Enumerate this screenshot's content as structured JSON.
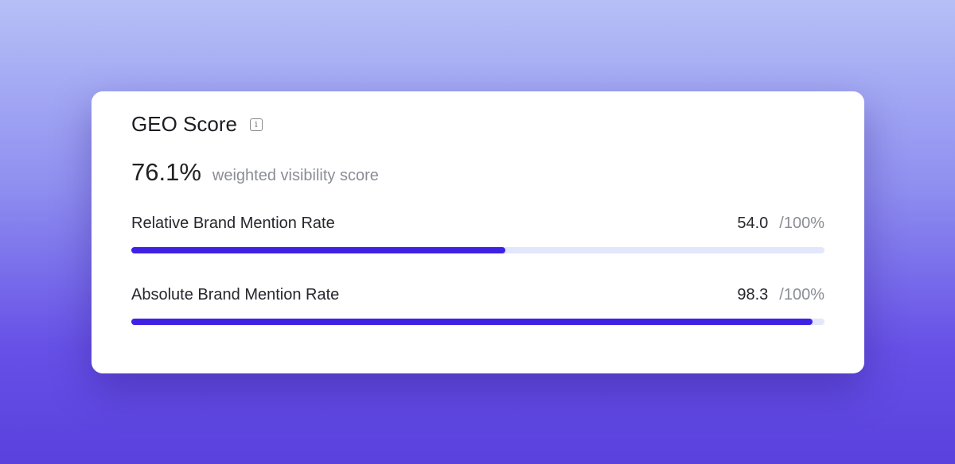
{
  "card": {
    "title": "GEO Score",
    "info_icon": "info-icon",
    "score_value": "76.1%",
    "score_label": "weighted visibility score",
    "metrics": [
      {
        "label": "Relative Brand Mention Rate",
        "value": "54.0",
        "max": "/100%",
        "percent": 54.0
      },
      {
        "label": "Absolute Brand Mention Rate",
        "value": "98.3",
        "max": "/100%",
        "percent": 98.3
      }
    ]
  },
  "colors": {
    "accent": "#3d22e6",
    "track": "#e3e7fb"
  }
}
